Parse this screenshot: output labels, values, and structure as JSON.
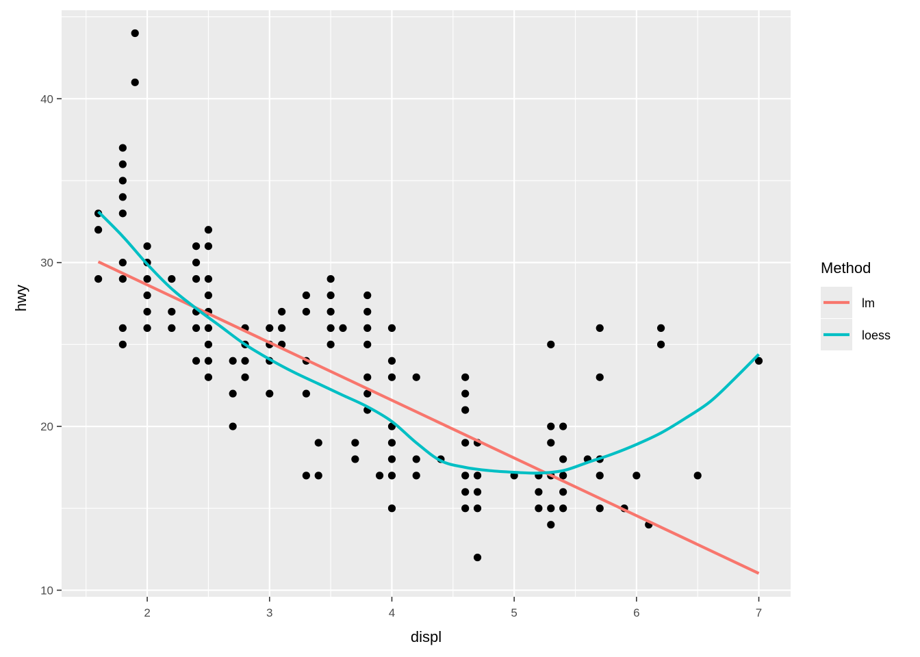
{
  "chart_data": {
    "type": "scatter",
    "xlabel": "displ",
    "ylabel": "hwy",
    "xlim": [
      1.3,
      7.26
    ],
    "ylim": [
      9.6,
      45.4
    ],
    "x_ticks": [
      2,
      3,
      4,
      5,
      6,
      7
    ],
    "y_ticks": [
      10,
      20,
      30,
      40
    ],
    "x_tick_labels": [
      "2",
      "3",
      "4",
      "5",
      "6",
      "7"
    ],
    "y_tick_labels": [
      "10",
      "20",
      "30",
      "40"
    ],
    "grid": true,
    "points": [
      [
        1.6,
        33
      ],
      [
        1.6,
        32
      ],
      [
        1.6,
        29
      ],
      [
        1.8,
        37
      ],
      [
        1.8,
        36
      ],
      [
        1.8,
        35
      ],
      [
        1.8,
        34
      ],
      [
        1.8,
        33
      ],
      [
        1.8,
        30
      ],
      [
        1.8,
        29
      ],
      [
        1.8,
        26
      ],
      [
        1.8,
        25
      ],
      [
        1.9,
        44
      ],
      [
        1.9,
        41
      ],
      [
        2.0,
        31
      ],
      [
        2.0,
        30
      ],
      [
        2.0,
        29
      ],
      [
        2.0,
        28
      ],
      [
        2.0,
        27
      ],
      [
        2.0,
        26
      ],
      [
        2.2,
        29
      ],
      [
        2.2,
        27
      ],
      [
        2.2,
        26
      ],
      [
        2.4,
        31
      ],
      [
        2.4,
        30
      ],
      [
        2.4,
        29
      ],
      [
        2.4,
        27
      ],
      [
        2.4,
        26
      ],
      [
        2.4,
        24
      ],
      [
        2.5,
        32
      ],
      [
        2.5,
        31
      ],
      [
        2.5,
        29
      ],
      [
        2.5,
        28
      ],
      [
        2.5,
        27
      ],
      [
        2.5,
        26
      ],
      [
        2.5,
        25
      ],
      [
        2.5,
        24
      ],
      [
        2.5,
        23
      ],
      [
        2.7,
        24
      ],
      [
        2.7,
        22
      ],
      [
        2.7,
        20
      ],
      [
        2.8,
        26
      ],
      [
        2.8,
        25
      ],
      [
        2.8,
        24
      ],
      [
        2.8,
        23
      ],
      [
        3.0,
        26
      ],
      [
        3.0,
        25
      ],
      [
        3.0,
        24
      ],
      [
        3.0,
        22
      ],
      [
        3.1,
        27
      ],
      [
        3.1,
        26
      ],
      [
        3.1,
        25
      ],
      [
        3.3,
        28
      ],
      [
        3.3,
        27
      ],
      [
        3.3,
        24
      ],
      [
        3.3,
        22
      ],
      [
        3.3,
        17
      ],
      [
        3.4,
        19
      ],
      [
        3.4,
        17
      ],
      [
        3.5,
        29
      ],
      [
        3.5,
        28
      ],
      [
        3.5,
        27
      ],
      [
        3.5,
        26
      ],
      [
        3.5,
        25
      ],
      [
        3.6,
        26
      ],
      [
        3.7,
        19
      ],
      [
        3.7,
        18
      ],
      [
        3.8,
        28
      ],
      [
        3.8,
        27
      ],
      [
        3.8,
        26
      ],
      [
        3.8,
        25
      ],
      [
        3.8,
        23
      ],
      [
        3.8,
        22
      ],
      [
        3.8,
        21
      ],
      [
        3.9,
        17
      ],
      [
        4.0,
        26
      ],
      [
        4.0,
        24
      ],
      [
        4.0,
        23
      ],
      [
        4.0,
        20
      ],
      [
        4.0,
        19
      ],
      [
        4.0,
        18
      ],
      [
        4.0,
        17
      ],
      [
        4.0,
        15
      ],
      [
        4.2,
        23
      ],
      [
        4.2,
        18
      ],
      [
        4.2,
        17
      ],
      [
        4.4,
        18
      ],
      [
        4.6,
        23
      ],
      [
        4.6,
        22
      ],
      [
        4.6,
        21
      ],
      [
        4.6,
        19
      ],
      [
        4.6,
        17
      ],
      [
        4.6,
        16
      ],
      [
        4.6,
        15
      ],
      [
        4.7,
        19
      ],
      [
        4.7,
        17
      ],
      [
        4.7,
        16
      ],
      [
        4.7,
        15
      ],
      [
        4.7,
        12
      ],
      [
        5.0,
        17
      ],
      [
        5.2,
        17
      ],
      [
        5.2,
        16
      ],
      [
        5.2,
        15
      ],
      [
        5.3,
        25
      ],
      [
        5.3,
        20
      ],
      [
        5.3,
        19
      ],
      [
        5.3,
        17
      ],
      [
        5.3,
        15
      ],
      [
        5.3,
        14
      ],
      [
        5.4,
        20
      ],
      [
        5.4,
        18
      ],
      [
        5.4,
        17
      ],
      [
        5.4,
        16
      ],
      [
        5.4,
        15
      ],
      [
        5.6,
        18
      ],
      [
        5.7,
        26
      ],
      [
        5.7,
        23
      ],
      [
        5.7,
        18
      ],
      [
        5.7,
        17
      ],
      [
        5.7,
        15
      ],
      [
        5.9,
        15
      ],
      [
        6.0,
        17
      ],
      [
        6.1,
        14
      ],
      [
        6.2,
        26
      ],
      [
        6.2,
        25
      ],
      [
        6.5,
        17
      ],
      [
        7.0,
        24
      ]
    ],
    "series": [
      {
        "name": "lm",
        "color": "#F8766D",
        "x": [
          1.6,
          7.0
        ],
        "y": [
          30.05,
          11.03
        ]
      },
      {
        "name": "loess",
        "color": "#00BFC4",
        "x": [
          1.6,
          1.8,
          2.0,
          2.2,
          2.4,
          2.6,
          2.8,
          3.0,
          3.2,
          3.4,
          3.6,
          3.8,
          4.0,
          4.2,
          4.4,
          4.6,
          4.8,
          5.0,
          5.2,
          5.4,
          5.6,
          5.8,
          6.0,
          6.2,
          6.4,
          6.6,
          6.8,
          7.0
        ],
        "y": [
          33.1,
          31.6,
          29.9,
          28.4,
          27.2,
          26.1,
          25.0,
          24.1,
          23.3,
          22.6,
          21.9,
          21.2,
          20.3,
          19.0,
          17.9,
          17.5,
          17.3,
          17.2,
          17.15,
          17.3,
          17.8,
          18.3,
          18.9,
          19.6,
          20.5,
          21.5,
          22.9,
          24.4
        ]
      }
    ],
    "legend": {
      "title": "Method",
      "placement": "right",
      "entries": [
        {
          "label": "lm",
          "color": "#F8766D"
        },
        {
          "label": "loess",
          "color": "#00BFC4"
        }
      ]
    },
    "panel_color": "#EBEBEB",
    "grid_color": "#FFFFFF",
    "point_color": "#000000"
  }
}
